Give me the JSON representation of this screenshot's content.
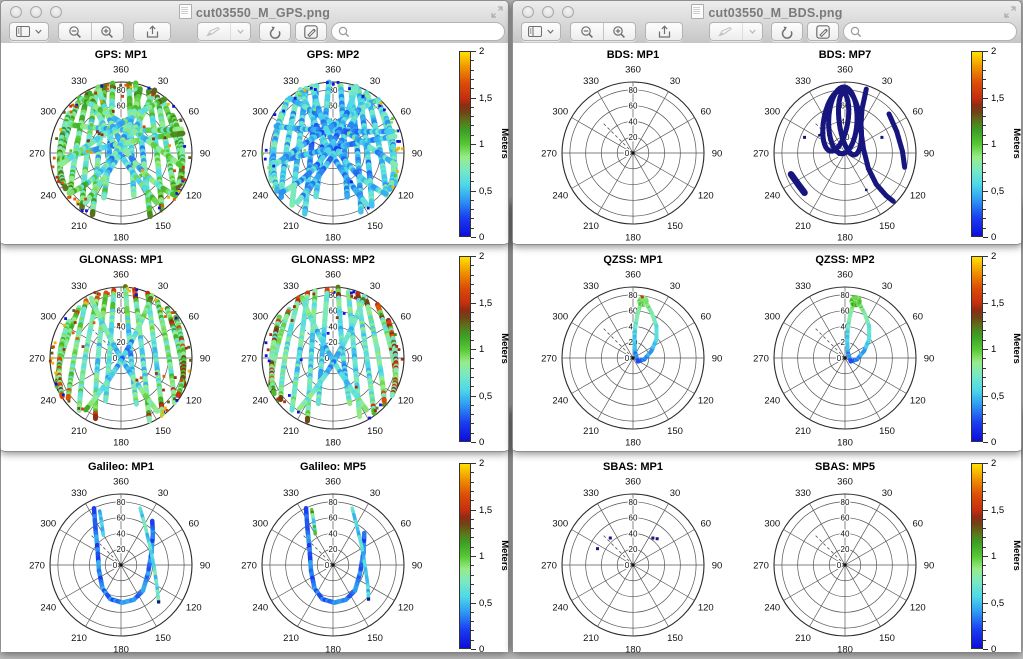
{
  "windows": {
    "left": {
      "title": "cut03550_M_GPS.png"
    },
    "right": {
      "title": "cut03550_M_BDS.png"
    }
  },
  "toolbar": {
    "search_placeholder": "",
    "icons": [
      "sidebar-view",
      "zoom-out",
      "zoom-in",
      "share",
      "markup-pen",
      "markup-dropdown",
      "rotate-left",
      "edit",
      "search"
    ]
  },
  "colorbar": {
    "label": "Meters",
    "range": [
      0,
      2
    ],
    "tick_labels_top_to_bottom": [
      "2",
      "1,5",
      "1",
      "0,5",
      "0"
    ],
    "gradient_stops": [
      [
        0.0,
        "#0d0dd8"
      ],
      [
        0.1,
        "#1b3df0"
      ],
      [
        0.2,
        "#2f9df2"
      ],
      [
        0.28,
        "#4ed9e8"
      ],
      [
        0.36,
        "#79e9c3"
      ],
      [
        0.43,
        "#97ec86"
      ],
      [
        0.5,
        "#55c832"
      ],
      [
        0.57,
        "#3da026"
      ],
      [
        0.62,
        "#58781a"
      ],
      [
        0.67,
        "#6f4616"
      ],
      [
        0.71,
        "#8c2d12"
      ],
      [
        0.75,
        "#c62f10"
      ],
      [
        0.83,
        "#da4c07"
      ],
      [
        0.91,
        "#ef8d00"
      ],
      [
        1.0,
        "#ffe100"
      ]
    ]
  },
  "track_shapes": {
    "fan": [
      [
        -0.62,
        0.72,
        -0.88,
        0.02,
        -0.88,
        -0.4
      ],
      [
        -0.5,
        0.82,
        -0.7,
        -0.02,
        -0.73,
        -0.6
      ],
      [
        -0.36,
        0.9,
        -0.52,
        -0.06,
        -0.56,
        -0.76
      ],
      [
        -0.22,
        0.95,
        -0.34,
        -0.1,
        -0.39,
        -0.86
      ],
      [
        -0.09,
        0.97,
        -0.15,
        -0.12,
        -0.21,
        -0.62
      ],
      [
        0.62,
        0.72,
        0.88,
        0.02,
        0.88,
        -0.4
      ],
      [
        0.5,
        0.82,
        0.7,
        -0.02,
        0.73,
        -0.6
      ],
      [
        0.36,
        0.9,
        0.52,
        -0.06,
        0.56,
        -0.76
      ],
      [
        0.22,
        0.95,
        0.34,
        -0.1,
        0.39,
        -0.86
      ],
      [
        0.09,
        0.97,
        0.15,
        -0.12,
        0.21,
        -0.62
      ],
      [
        -0.45,
        0.86,
        -0.1,
        0.0,
        0.5,
        -0.72
      ],
      [
        0.45,
        0.86,
        0.1,
        0.0,
        -0.5,
        -0.72
      ],
      [
        -0.75,
        0.55,
        -0.95,
        -0.05,
        -0.8,
        -0.52
      ],
      [
        0.75,
        0.55,
        0.95,
        -0.05,
        0.8,
        -0.52
      ]
    ],
    "cross": [
      [
        -0.82,
        0.4,
        -0.05,
        0.28,
        0.82,
        0.32
      ],
      [
        -0.86,
        -0.12,
        -0.08,
        0.12,
        0.84,
        0.26
      ],
      [
        -0.58,
        0.76,
        0.12,
        0.38,
        0.86,
        -0.18
      ],
      [
        0.58,
        0.76,
        -0.12,
        0.38,
        -0.86,
        -0.18
      ],
      [
        -0.3,
        0.93,
        0.0,
        -0.22,
        0.74,
        -0.58
      ],
      [
        0.3,
        0.93,
        0.0,
        -0.22,
        -0.74,
        -0.58
      ]
    ]
  },
  "chart_data": {
    "type": "polar-skyplot",
    "grid": {
      "azimuth_ticks": [
        {
          "az": 0,
          "label": "360"
        },
        {
          "az": 30,
          "label": "30"
        },
        {
          "az": 60,
          "label": "60"
        },
        {
          "az": 90,
          "label": "90"
        },
        {
          "az": 120,
          "label": "120"
        },
        {
          "az": 150,
          "label": "150"
        },
        {
          "az": 180,
          "label": "180"
        },
        {
          "az": 210,
          "label": "210"
        },
        {
          "az": 240,
          "label": "240"
        },
        {
          "az": 270,
          "label": "270"
        },
        {
          "az": 300,
          "label": "300"
        },
        {
          "az": 330,
          "label": "330"
        }
      ],
      "elevation_ticks": [
        {
          "r": 80,
          "label": "80"
        },
        {
          "r": 60,
          "label": "60"
        },
        {
          "r": 40,
          "label": "40"
        },
        {
          "r": 20,
          "label": "20"
        },
        {
          "r": 0,
          "label": "0"
        }
      ],
      "outer_radius_value": 90,
      "dashed_radial_azimuth": 315
    },
    "colorbar_label": "Meters",
    "plots": [
      {
        "id": "gps-mp1",
        "title": "GPS: MP1",
        "content": {
          "kind": "dense",
          "seed": 2,
          "width": 5.5,
          "v_center": 0.55,
          "v_edge": 1.05,
          "noise": 0.3,
          "rim_specks": 55,
          "speck_values": [
            0.02,
            1.5,
            1.9,
            1.3,
            1.7
          ],
          "inner_specks": 22,
          "inner_speck_values": [
            1.4,
            1.6,
            1.0,
            1.85
          ]
        }
      },
      {
        "id": "gps-mp2",
        "title": "GPS: MP2",
        "content": {
          "kind": "dense",
          "seed": 9,
          "width": 5.5,
          "v_center": 0.4,
          "v_edge": 0.62,
          "noise": 0.22,
          "rim_specks": 40,
          "speck_values": [
            0.02,
            1.9,
            0.9,
            0.05,
            1.0
          ],
          "inner_specks": 10,
          "inner_speck_values": [
            0.75,
            0.9,
            0.05
          ]
        }
      },
      {
        "id": "glonass-mp1",
        "title": "GLONASS: MP1",
        "content": {
          "kind": "fan",
          "seed": 4,
          "width": 5,
          "v_center": 0.5,
          "v_edge": 1.0,
          "noise": 0.25,
          "rim_specks": 45,
          "speck_values": [
            1.45,
            1.3,
            0.02,
            1.9,
            1.6
          ],
          "inner_specks": 14,
          "inner_speck_values": [
            1.45,
            1.7
          ],
          "tip_heat": true
        }
      },
      {
        "id": "glonass-mp2",
        "title": "GLONASS: MP2",
        "content": {
          "kind": "fan",
          "seed": 6,
          "width": 5,
          "v_center": 0.48,
          "v_edge": 0.88,
          "noise": 0.2,
          "rim_specks": 30,
          "speck_values": [
            1.45,
            0.02,
            1.9,
            1.2
          ],
          "inner_specks": 8,
          "inner_speck_values": [
            1.45,
            0.05
          ],
          "tip_heat": true
        }
      },
      {
        "id": "galileo-mp1",
        "title": "Galileo: MP1",
        "content": {
          "kind": "tracks",
          "tracks": [
            {
              "pts": [
                [
                  -0.38,
                  0.8
                ],
                [
                  -0.36,
                  0.52
                ],
                [
                  -0.33,
                  0.22
                ],
                [
                  -0.31,
                  -0.08
                ],
                [
                  -0.26,
                  -0.33
                ],
                [
                  -0.15,
                  -0.48
                ],
                [
                  0.02,
                  -0.53
                ],
                [
                  0.18,
                  -0.49
                ],
                [
                  0.31,
                  -0.36
                ],
                [
                  0.38,
                  -0.12
                ],
                [
                  0.43,
                  0.18
                ],
                [
                  0.45,
                  0.45
                ],
                [
                  0.44,
                  0.62
                ]
              ],
              "w": 4.5,
              "v": 0.32,
              "noise": 0.14
            },
            {
              "pts": [
                [
                  -0.3,
                  0.76
                ],
                [
                  -0.27,
                  0.58
                ],
                [
                  -0.25,
                  0.42
                ]
              ],
              "w": 3.5,
              "v": 0.5,
              "noise": 0.1
            },
            {
              "pts": [
                [
                  0.27,
                  0.8
                ],
                [
                  0.34,
                  0.55
                ],
                [
                  0.41,
                  0.25
                ],
                [
                  0.47,
                  -0.05
                ],
                [
                  0.51,
                  -0.33
                ],
                [
                  0.53,
                  -0.52
                ]
              ],
              "w": 3.5,
              "v": 0.62,
              "noise": 0.18,
              "end_dot": true
            }
          ]
        }
      },
      {
        "id": "galileo-mp5",
        "title": "Galileo: MP5",
        "content": {
          "kind": "tracks",
          "tracks": [
            {
              "pts": [
                [
                  -0.38,
                  0.8
                ],
                [
                  -0.36,
                  0.52
                ],
                [
                  -0.33,
                  0.22
                ],
                [
                  -0.31,
                  -0.08
                ],
                [
                  -0.26,
                  -0.33
                ],
                [
                  -0.15,
                  -0.48
                ],
                [
                  0.02,
                  -0.53
                ],
                [
                  0.18,
                  -0.49
                ],
                [
                  0.31,
                  -0.36
                ],
                [
                  0.38,
                  -0.12
                ],
                [
                  0.43,
                  0.18
                ],
                [
                  0.44,
                  0.45
                ]
              ],
              "w": 4.5,
              "v": 0.3,
              "noise": 0.12
            },
            {
              "pts": [
                [
                  -0.3,
                  0.78
                ],
                [
                  -0.27,
                  0.6
                ],
                [
                  -0.25,
                  0.44
                ]
              ],
              "w": 3.5,
              "v": 0.95,
              "noise": 0.5
            },
            {
              "pts": [
                [
                  0.27,
                  0.8
                ],
                [
                  0.33,
                  0.57
                ],
                [
                  0.4,
                  0.28
                ],
                [
                  0.45,
                  0.0
                ],
                [
                  0.49,
                  -0.28
                ],
                [
                  0.5,
                  -0.48
                ]
              ],
              "w": 3.5,
              "v": 0.55,
              "noise": 0.15,
              "end_dot": true
            }
          ]
        }
      },
      {
        "id": "bds-mp1",
        "title": "BDS: MP1",
        "content": {
          "kind": "empty"
        }
      },
      {
        "id": "bds-mp7",
        "title": "BDS: MP7",
        "content": {
          "kind": "navy-tracks",
          "color": "#16167e",
          "ellipses": [
            [
              -0.13,
              0.45,
              0.17,
              0.43,
              -10
            ],
            [
              0.07,
              0.43,
              0.15,
              0.46,
              8
            ],
            [
              -0.03,
              0.46,
              0.2,
              0.47,
              -2
            ]
          ],
          "tracks": [
            {
              "pts": [
                [
                  0.3,
                  0.9
                ],
                [
                  0.24,
                  0.62
                ],
                [
                  0.22,
                  0.34
                ],
                [
                  0.26,
                  0.06
                ],
                [
                  0.33,
                  -0.22
                ],
                [
                  0.44,
                  -0.44
                ],
                [
                  0.58,
                  -0.6
                ],
                [
                  0.68,
                  -0.68
                ]
              ],
              "w": 5
            },
            {
              "pts": [
                [
                  0.62,
                  0.55
                ],
                [
                  0.73,
                  0.3
                ],
                [
                  0.81,
                  0.02
                ],
                [
                  0.84,
                  -0.2
                ]
              ],
              "w": 5
            },
            {
              "pts": [
                [
                  -0.76,
                  -0.3
                ],
                [
                  -0.66,
                  -0.44
                ],
                [
                  -0.57,
                  -0.56
                ]
              ],
              "w": 6.5
            }
          ],
          "dots": [
            [
              -0.57,
              0.22,
              3
            ],
            [
              -0.36,
              0.25,
              2.5
            ],
            [
              0.52,
              0.22,
              3
            ],
            [
              0.3,
              -0.52,
              2.5
            ]
          ]
        }
      },
      {
        "id": "qzss-mp1",
        "title": "QZSS: MP1",
        "content": {
          "kind": "loop",
          "w": 4,
          "pts": [
            [
              0.07,
              -0.05
            ],
            [
              0.16,
              -0.02
            ],
            [
              0.26,
              0.1
            ],
            [
              0.33,
              0.26
            ],
            [
              0.33,
              0.45
            ],
            [
              0.27,
              0.62
            ],
            [
              0.2,
              0.75
            ],
            [
              0.15,
              0.82
            ],
            [
              0.1,
              0.74
            ],
            [
              0.06,
              0.6
            ],
            [
              0.03,
              0.42
            ],
            [
              0.02,
              0.24
            ],
            [
              0.03,
              0.08
            ],
            [
              0.07,
              -0.05
            ]
          ],
          "v_bottom": 0.3,
          "v_top": 0.92,
          "noise": 0.12,
          "knot": {
            "c": [
              0.14,
              0.8
            ],
            "r": 0.055,
            "v": 0.9
          },
          "hot_dot": {
            "p": [
              0.13,
              0.86
            ],
            "v": 1.55,
            "size": 3
          }
        }
      },
      {
        "id": "qzss-mp2",
        "title": "QZSS: MP2",
        "content": {
          "kind": "loop",
          "w": 4,
          "pts": [
            [
              0.08,
              -0.05
            ],
            [
              0.17,
              -0.02
            ],
            [
              0.27,
              0.1
            ],
            [
              0.34,
              0.26
            ],
            [
              0.34,
              0.45
            ],
            [
              0.28,
              0.62
            ],
            [
              0.21,
              0.75
            ],
            [
              0.16,
              0.82
            ],
            [
              0.11,
              0.74
            ],
            [
              0.07,
              0.6
            ],
            [
              0.04,
              0.42
            ],
            [
              0.03,
              0.24
            ],
            [
              0.04,
              0.08
            ],
            [
              0.08,
              -0.05
            ]
          ],
          "v_bottom": 0.3,
          "v_top": 0.95,
          "noise": 0.12,
          "knot": {
            "c": [
              0.15,
              0.8
            ],
            "r": 0.06,
            "v": 1.0
          },
          "hot_dot": {
            "p": [
              0.14,
              0.85
            ],
            "v": 0.95,
            "size": 3
          }
        }
      },
      {
        "id": "sbas-mp1",
        "title": "SBAS: MP1",
        "content": {
          "kind": "dots",
          "color": "#16167e",
          "dots": [
            [
              0.28,
              0.38,
              3
            ],
            [
              0.34,
              0.37,
              3
            ],
            [
              -0.32,
              0.38,
              3
            ],
            [
              -0.5,
              0.23,
              3
            ]
          ]
        }
      },
      {
        "id": "sbas-mp5",
        "title": "SBAS: MP5",
        "content": {
          "kind": "empty"
        }
      }
    ]
  }
}
